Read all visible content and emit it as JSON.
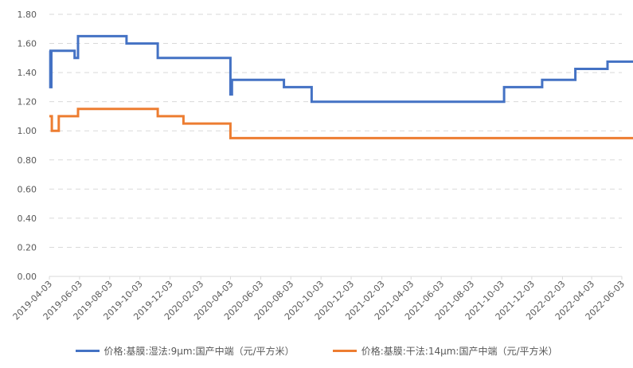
{
  "chart_data": {
    "type": "line",
    "title": "",
    "xlabel": "",
    "ylabel": "",
    "ylim": [
      0,
      1.8
    ],
    "yticks": [
      "0.00",
      "0.20",
      "0.40",
      "0.60",
      "0.80",
      "1.00",
      "1.20",
      "1.40",
      "1.60",
      "1.80"
    ],
    "xlim": [
      "2019-04-03",
      "2022-06-03"
    ],
    "xticks": [
      "2019-04-03",
      "2019-06-03",
      "2019-08-03",
      "2019-10-03",
      "2019-12-03",
      "2020-02-03",
      "2020-04-03",
      "2020-06-03",
      "2020-08-03",
      "2020-10-03",
      "2020-12-03",
      "2021-02-03",
      "2021-04-03",
      "2021-06-03",
      "2021-08-03",
      "2021-10-03",
      "2021-12-03",
      "2022-02-03",
      "2022-04-03",
      "2022-06-03"
    ],
    "grid": "horizontal dashed",
    "legend_position": "bottom",
    "series": [
      {
        "name": "价格:基膜:湿法:9μm:国产中端（元/平方米）",
        "color": "#4472C4",
        "step": true,
        "points": [
          [
            "2019-04-03",
            1.55
          ],
          [
            "2019-04-05",
            1.3
          ],
          [
            "2019-04-07",
            1.55
          ],
          [
            "2019-05-24",
            1.5
          ],
          [
            "2019-05-31",
            1.65
          ],
          [
            "2019-09-06",
            1.6
          ],
          [
            "2019-11-08",
            1.5
          ],
          [
            "2020-04-03",
            1.25
          ],
          [
            "2020-04-06",
            1.35
          ],
          [
            "2020-07-20",
            1.3
          ],
          [
            "2020-09-14",
            1.2
          ],
          [
            "2021-10-08",
            1.3
          ],
          [
            "2021-12-24",
            1.35
          ],
          [
            "2022-03-01",
            1.425
          ],
          [
            "2022-05-05",
            1.475
          ],
          [
            "2022-06-28",
            1.475
          ]
        ]
      },
      {
        "name": "价格:基膜:干法:14μm:国产中端（元/平方米）",
        "color": "#ED7D31",
        "step": true,
        "points": [
          [
            "2019-04-03",
            1.1
          ],
          [
            "2019-04-08",
            1.0
          ],
          [
            "2019-04-22",
            1.1
          ],
          [
            "2019-05-31",
            1.15
          ],
          [
            "2019-11-08",
            1.1
          ],
          [
            "2019-12-30",
            1.05
          ],
          [
            "2020-04-03",
            0.95
          ],
          [
            "2022-06-28",
            0.95
          ]
        ]
      }
    ]
  }
}
